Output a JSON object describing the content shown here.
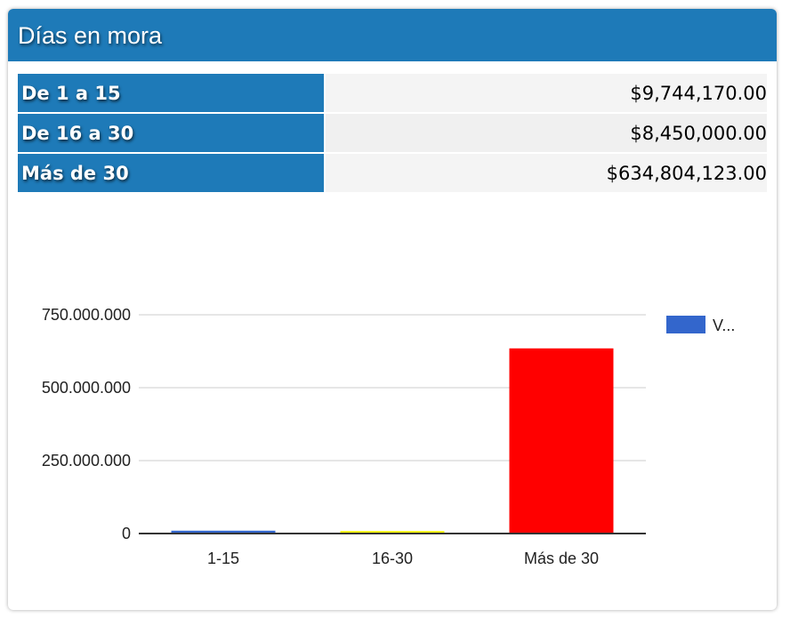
{
  "header": {
    "title": "Días en mora"
  },
  "summary": [
    {
      "label": "De 1 a 15",
      "value": "$9,744,170.00"
    },
    {
      "label": "De 16 a 30",
      "value": "$8,450,000.00"
    },
    {
      "label": "Más de 30",
      "value": "$634,804,123.00"
    }
  ],
  "chart_data": {
    "type": "bar",
    "categories": [
      "1-15",
      "16-30",
      "Más de 30"
    ],
    "values": [
      9744170,
      8450000,
      634804123
    ],
    "colors": [
      "#3366cc",
      "#ffff00",
      "#ff0000"
    ],
    "ylim": [
      0,
      750000000
    ],
    "yticks": [
      0,
      250000000,
      500000000,
      750000000
    ],
    "ytick_labels": [
      "0",
      "250.000.000",
      "500.000.000",
      "750.000.000"
    ],
    "legend": {
      "label": "V...",
      "color": "#3366cc",
      "placement": "right"
    },
    "grid": true
  }
}
